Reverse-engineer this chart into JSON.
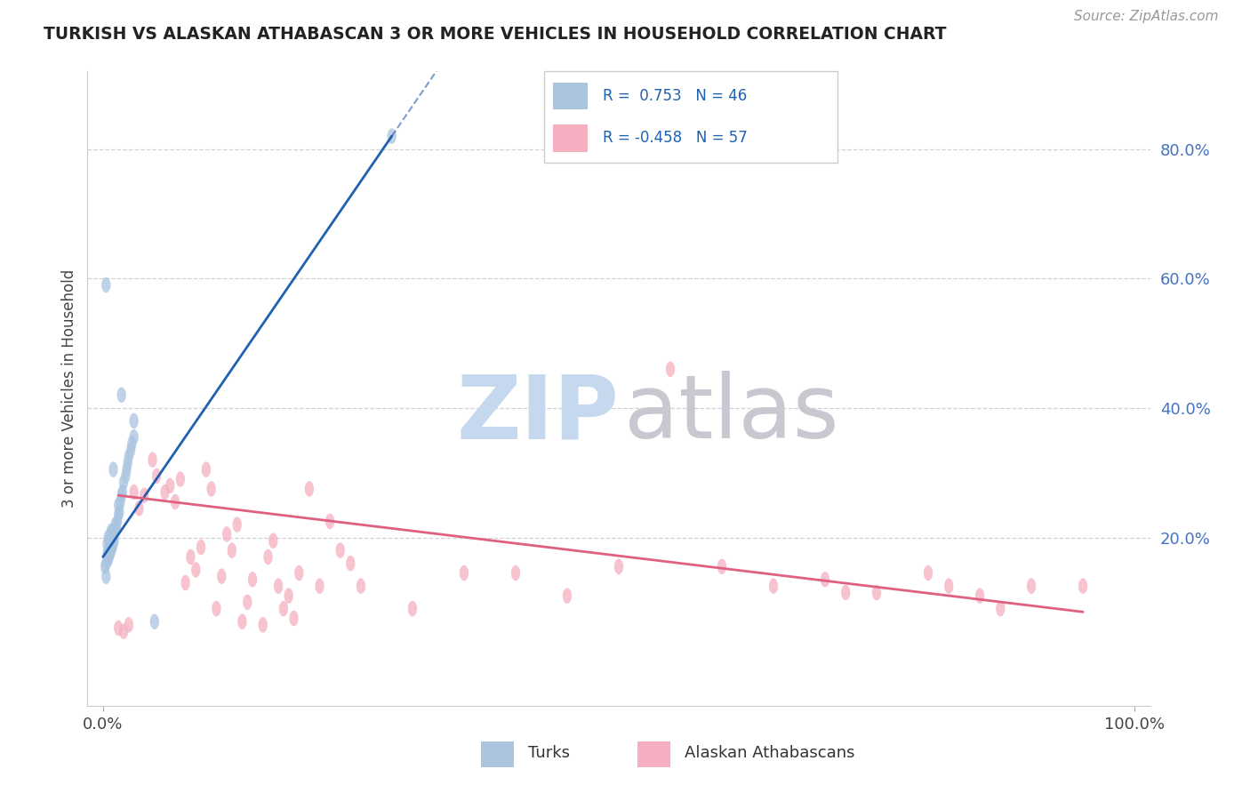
{
  "title": "TURKISH VS ALASKAN ATHABASCAN 3 OR MORE VEHICLES IN HOUSEHOLD CORRELATION CHART",
  "source": "Source: ZipAtlas.com",
  "ylabel": "3 or more Vehicles in Household",
  "ylabel_right_ticks": [
    "80.0%",
    "60.0%",
    "40.0%",
    "20.0%"
  ],
  "ylabel_right_vals": [
    0.8,
    0.6,
    0.4,
    0.2
  ],
  "turks_color": "#aac4e0",
  "alaskan_color": "#f5afc0",
  "turks_line_color": "#2060b0",
  "alaskan_line_color": "#e06080",
  "watermark_zip_color": "#c5d8ee",
  "watermark_atlas_color": "#c8c8d0",
  "turks_scatter": [
    [
      0.002,
      0.155
    ],
    [
      0.003,
      0.14
    ],
    [
      0.003,
      0.16
    ],
    [
      0.004,
      0.175
    ],
    [
      0.004,
      0.19
    ],
    [
      0.005,
      0.165
    ],
    [
      0.005,
      0.18
    ],
    [
      0.005,
      0.2
    ],
    [
      0.006,
      0.17
    ],
    [
      0.006,
      0.185
    ],
    [
      0.006,
      0.195
    ],
    [
      0.007,
      0.175
    ],
    [
      0.007,
      0.19
    ],
    [
      0.007,
      0.205
    ],
    [
      0.008,
      0.18
    ],
    [
      0.008,
      0.195
    ],
    [
      0.008,
      0.21
    ],
    [
      0.009,
      0.185
    ],
    [
      0.009,
      0.2
    ],
    [
      0.01,
      0.19
    ],
    [
      0.01,
      0.205
    ],
    [
      0.011,
      0.195
    ],
    [
      0.011,
      0.21
    ],
    [
      0.012,
      0.22
    ],
    [
      0.013,
      0.215
    ],
    [
      0.014,
      0.225
    ],
    [
      0.015,
      0.235
    ],
    [
      0.015,
      0.25
    ],
    [
      0.016,
      0.24
    ],
    [
      0.017,
      0.255
    ],
    [
      0.018,
      0.265
    ],
    [
      0.019,
      0.27
    ],
    [
      0.02,
      0.285
    ],
    [
      0.022,
      0.295
    ],
    [
      0.023,
      0.305
    ],
    [
      0.024,
      0.315
    ],
    [
      0.025,
      0.325
    ],
    [
      0.027,
      0.335
    ],
    [
      0.028,
      0.345
    ],
    [
      0.03,
      0.355
    ],
    [
      0.003,
      0.59
    ],
    [
      0.018,
      0.42
    ],
    [
      0.03,
      0.38
    ],
    [
      0.05,
      0.07
    ],
    [
      0.01,
      0.305
    ],
    [
      0.28,
      0.82
    ]
  ],
  "alaskan_scatter": [
    [
      0.015,
      0.06
    ],
    [
      0.02,
      0.055
    ],
    [
      0.025,
      0.065
    ],
    [
      0.03,
      0.27
    ],
    [
      0.035,
      0.245
    ],
    [
      0.04,
      0.265
    ],
    [
      0.048,
      0.32
    ],
    [
      0.052,
      0.295
    ],
    [
      0.06,
      0.27
    ],
    [
      0.065,
      0.28
    ],
    [
      0.07,
      0.255
    ],
    [
      0.075,
      0.29
    ],
    [
      0.08,
      0.13
    ],
    [
      0.085,
      0.17
    ],
    [
      0.09,
      0.15
    ],
    [
      0.095,
      0.185
    ],
    [
      0.1,
      0.305
    ],
    [
      0.105,
      0.275
    ],
    [
      0.11,
      0.09
    ],
    [
      0.115,
      0.14
    ],
    [
      0.12,
      0.205
    ],
    [
      0.125,
      0.18
    ],
    [
      0.13,
      0.22
    ],
    [
      0.135,
      0.07
    ],
    [
      0.14,
      0.1
    ],
    [
      0.145,
      0.135
    ],
    [
      0.155,
      0.065
    ],
    [
      0.16,
      0.17
    ],
    [
      0.165,
      0.195
    ],
    [
      0.17,
      0.125
    ],
    [
      0.175,
      0.09
    ],
    [
      0.18,
      0.11
    ],
    [
      0.185,
      0.075
    ],
    [
      0.19,
      0.145
    ],
    [
      0.2,
      0.275
    ],
    [
      0.21,
      0.125
    ],
    [
      0.22,
      0.225
    ],
    [
      0.23,
      0.18
    ],
    [
      0.24,
      0.16
    ],
    [
      0.25,
      0.125
    ],
    [
      0.3,
      0.09
    ],
    [
      0.35,
      0.145
    ],
    [
      0.4,
      0.145
    ],
    [
      0.45,
      0.11
    ],
    [
      0.5,
      0.155
    ],
    [
      0.55,
      0.46
    ],
    [
      0.6,
      0.155
    ],
    [
      0.65,
      0.125
    ],
    [
      0.7,
      0.135
    ],
    [
      0.72,
      0.115
    ],
    [
      0.75,
      0.115
    ],
    [
      0.8,
      0.145
    ],
    [
      0.82,
      0.125
    ],
    [
      0.85,
      0.11
    ],
    [
      0.87,
      0.09
    ],
    [
      0.9,
      0.125
    ],
    [
      0.95,
      0.125
    ]
  ],
  "xlim": [
    -0.015,
    1.015
  ],
  "ylim": [
    -0.06,
    0.92
  ],
  "turks_line_x": [
    0.0,
    0.28
  ],
  "turks_line_y": [
    0.17,
    0.82
  ],
  "alaskan_line_x": [
    0.015,
    0.95
  ],
  "alaskan_line_y": [
    0.265,
    0.085
  ]
}
